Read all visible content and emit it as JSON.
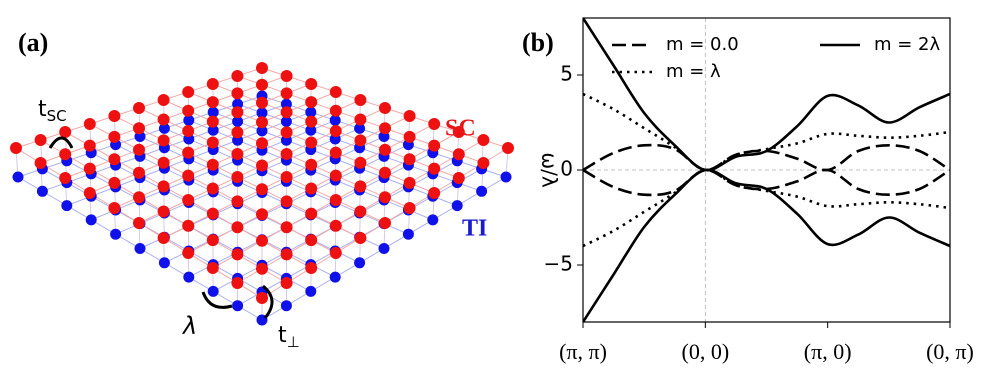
{
  "diagram": {
    "panel_label": "(a)",
    "t_sc": {
      "base": "t",
      "sub": "SC"
    },
    "sc_label": "SC",
    "ti_label": "TI",
    "lambda_label": "λ",
    "t_perp": {
      "base": "t",
      "sub": "⊥"
    }
  },
  "chart_data": {
    "type": "line",
    "panel_label": "(b)",
    "y_label": "ω/λ",
    "x": [
      0,
      0.25,
      0.5,
      0.75,
      1,
      1.25,
      1.5,
      1.75,
      2,
      2.25,
      2.5,
      2.75,
      3
    ],
    "xlim": [
      0,
      3
    ],
    "xticks": [
      {
        "value": 0,
        "label": "(π, π)"
      },
      {
        "value": 1,
        "label": "(0, 0)"
      },
      {
        "value": 2,
        "label": "(π, 0)"
      },
      {
        "value": 3,
        "label": "(0, π)"
      }
    ],
    "ylim": [
      -8,
      8
    ],
    "yticks": [
      {
        "value": -5,
        "label": "−5"
      },
      0,
      5
    ],
    "zero_lines": {
      "x": 1,
      "y": 0
    },
    "series": [
      {
        "name": "m = 0.0",
        "color": "#000000",
        "dash": "dashed",
        "values": [
          0,
          0.9,
          1.3,
          1.1,
          0,
          0.8,
          1.0,
          0.6,
          0,
          1.0,
          1.3,
          1.0,
          0
        ],
        "values_lower": [
          0,
          -0.9,
          -1.3,
          -1.1,
          0,
          -0.8,
          -1.0,
          -0.6,
          0,
          -1.0,
          -1.3,
          -1.0,
          0
        ]
      },
      {
        "name": "m = λ",
        "color": "#000000",
        "dash": "dotted",
        "values": [
          4,
          3.2,
          2.2,
          1.2,
          0,
          0.8,
          1.1,
          1.4,
          1.9,
          1.8,
          1.7,
          1.8,
          2
        ],
        "values_lower": [
          -4,
          -3.2,
          -2.2,
          -1.2,
          0,
          -0.8,
          -1.1,
          -1.4,
          -1.9,
          -1.8,
          -1.7,
          -1.8,
          -2
        ]
      },
      {
        "name": "m = 2λ",
        "color": "#000000",
        "dash": "solid",
        "values": [
          8,
          5.5,
          3.0,
          1.3,
          0,
          0.7,
          1.0,
          2.3,
          3.9,
          3.4,
          2.5,
          3.3,
          4.0
        ],
        "values_lower": [
          -8,
          -5.5,
          -3.0,
          -1.3,
          0,
          -0.7,
          -1.0,
          -2.3,
          -3.9,
          -3.4,
          -2.5,
          -3.3,
          -4.0
        ]
      }
    ]
  }
}
